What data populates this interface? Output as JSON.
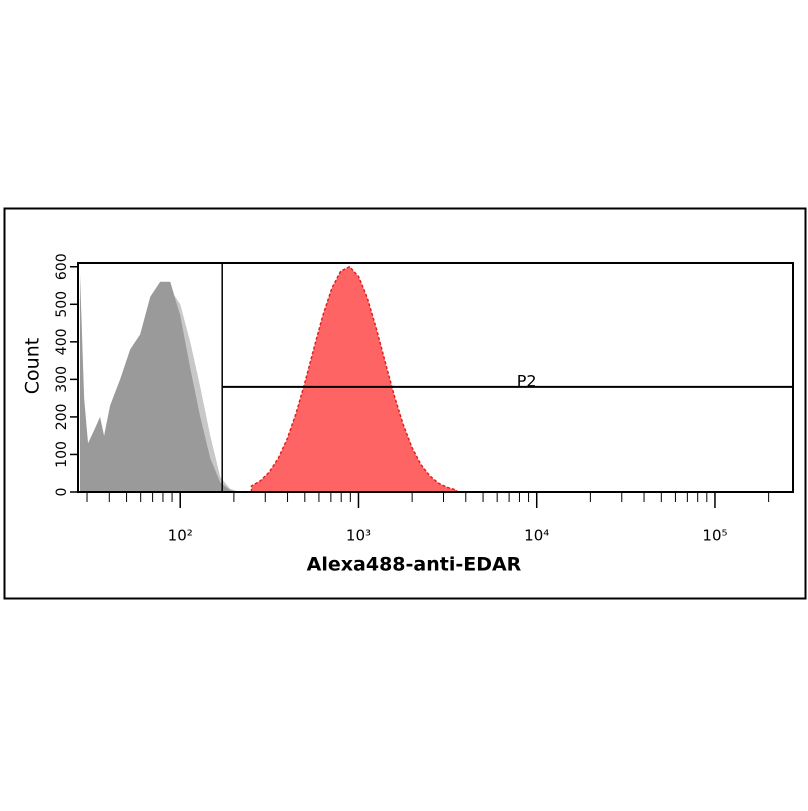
{
  "chart_data": {
    "type": "area",
    "x_label": "Alexa488-anti-EDAR",
    "y_label": "Count",
    "xscale": "log",
    "xlim": [
      26.7,
      274000
    ],
    "xticks": [
      {
        "value": 100,
        "label": "10²"
      },
      {
        "value": 1000,
        "label": "10³"
      },
      {
        "value": 10000,
        "label": "10⁴"
      },
      {
        "value": 100000,
        "label": "10⁵"
      }
    ],
    "ylim": [
      0,
      610
    ],
    "yticks": [
      0,
      100,
      200,
      300,
      400,
      500,
      600
    ],
    "gate": {
      "label": "P2",
      "xlim": [
        172,
        274000
      ],
      "y": 280
    },
    "series": [
      {
        "color": "#c8c8c8",
        "x": [
          27.4,
          28.9,
          30.4,
          33.3,
          35.5,
          37.4,
          40.4,
          46,
          52.4,
          59.6,
          67.9,
          77.2,
          87.9,
          100,
          113.8,
          129.5,
          147.4,
          167.8,
          191,
          217
        ],
        "values": [
          560,
          230,
          120,
          160,
          190,
          140,
          210,
          280,
          350,
          400,
          480,
          520,
          540,
          500,
          400,
          280,
          150,
          40,
          8,
          0
        ]
      },
      {
        "color": "#9a9a9a",
        "x": [
          27.4,
          28.9,
          30.4,
          33.3,
          35.5,
          37.4,
          40.4,
          46,
          52.4,
          59.6,
          67.9,
          77.2,
          87.9,
          100,
          113.8,
          129.5,
          147.4,
          167.8,
          191,
          217
        ],
        "values": [
          580,
          250,
          130,
          170,
          200,
          150,
          230,
          300,
          380,
          420,
          520,
          560,
          560,
          470,
          330,
          200,
          90,
          25,
          5,
          0
        ]
      },
      {
        "color": "#ff6464",
        "stroke": "#e02020",
        "dashed": true,
        "x": [
          251,
          282,
          316,
          355,
          398,
          447,
          501,
          562,
          631,
          708,
          794,
          891,
          1000,
          1122,
          1259,
          1413,
          1585,
          1778,
          1995,
          2239,
          2512,
          2818,
          3162,
          3548
        ],
        "values": [
          16,
          30,
          53,
          90,
          141,
          210,
          292,
          382,
          470,
          542,
          588,
          600,
          574,
          516,
          436,
          346,
          258,
          181,
          119,
          73,
          43,
          23,
          12,
          5
        ]
      }
    ]
  }
}
